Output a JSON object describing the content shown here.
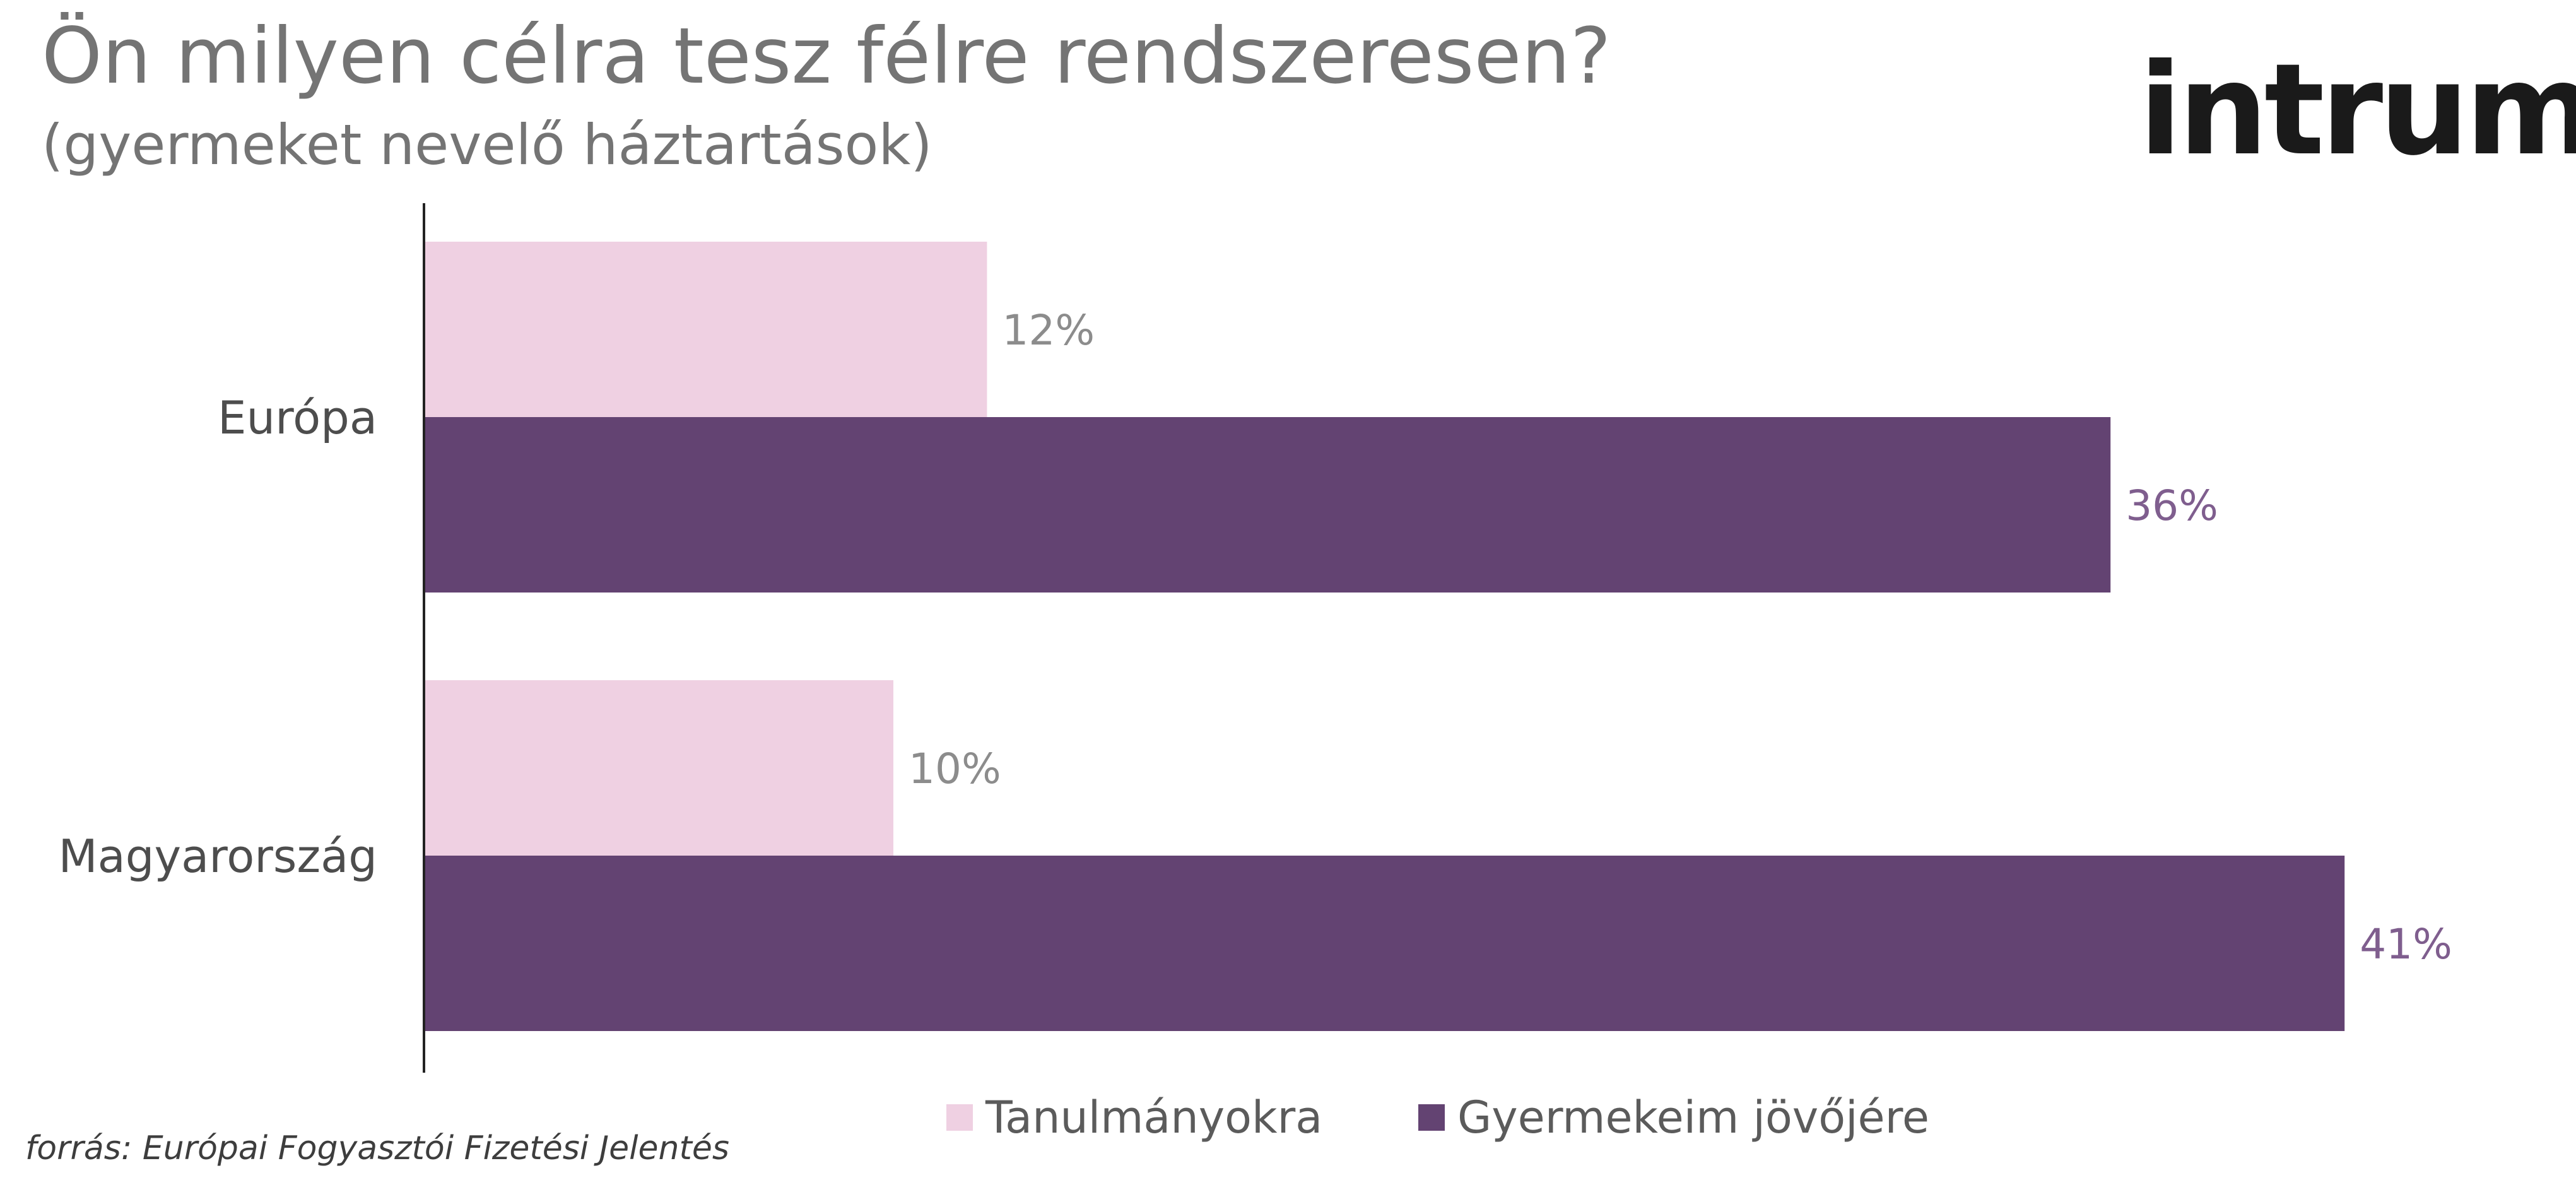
{
  "title": "Ön milyen célra tesz félre rendszeresen?",
  "subtitle": "(gyermeket nevelő háztartások)",
  "logo_text": "intrum",
  "source": "forrás: Európai Fogyasztói Fizetési Jelentés",
  "colors": {
    "series_light": "#efd0e2",
    "series_dark": "#634372",
    "label_light": "#8c8c8c",
    "label_dark": "#7f5e8e",
    "category_text": "#4d4d4d",
    "axis": "#222222"
  },
  "chart_data": {
    "type": "bar",
    "orientation": "horizontal",
    "categories": [
      "Európa",
      "Magyarország"
    ],
    "series": [
      {
        "name": "Tanulmányokra",
        "values": [
          12,
          10
        ],
        "labels": [
          "12%",
          "10%"
        ]
      },
      {
        "name": "Gyermekeim jövőjére",
        "values": [
          36,
          41
        ],
        "labels": [
          "36%",
          "41%"
        ]
      }
    ],
    "unit": "%",
    "xlim": [
      0,
      44
    ],
    "grid": false,
    "legend_position": "bottom"
  }
}
